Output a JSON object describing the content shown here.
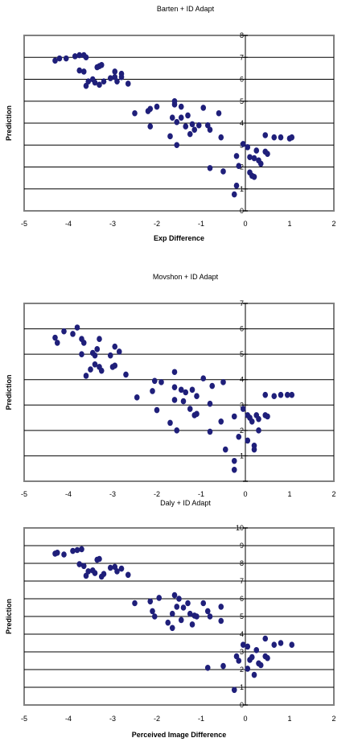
{
  "chart_data": [
    {
      "type": "scatter",
      "title": "Barten + ID Adapt",
      "xlabel": "Exp Difference",
      "ylabel": "Prediction",
      "xlim": [
        -5,
        2
      ],
      "ylim": [
        0,
        8
      ],
      "xticks": [
        -5,
        -4,
        -3,
        -2,
        -1,
        0,
        1,
        2
      ],
      "yticks": [
        0,
        1,
        2,
        3,
        4,
        5,
        6,
        7,
        8
      ],
      "marker_color": "#1f1f7a",
      "grid": "horizontal",
      "points": [
        [
          -4.3,
          6.85
        ],
        [
          -4.2,
          6.95
        ],
        [
          -4.05,
          6.95
        ],
        [
          -3.85,
          7.05
        ],
        [
          -3.75,
          7.1
        ],
        [
          -3.65,
          7.1
        ],
        [
          -3.6,
          7.0
        ],
        [
          -3.75,
          6.4
        ],
        [
          -3.65,
          6.35
        ],
        [
          -3.6,
          5.7
        ],
        [
          -3.55,
          5.9
        ],
        [
          -3.45,
          6.0
        ],
        [
          -3.4,
          5.85
        ],
        [
          -3.35,
          6.55
        ],
        [
          -3.3,
          6.6
        ],
        [
          -3.25,
          6.65
        ],
        [
          -3.3,
          5.75
        ],
        [
          -3.2,
          5.9
        ],
        [
          -3.05,
          6.05
        ],
        [
          -2.95,
          6.35
        ],
        [
          -2.95,
          6.1
        ],
        [
          -2.9,
          5.9
        ],
        [
          -2.8,
          6.25
        ],
        [
          -2.8,
          6.1
        ],
        [
          -2.65,
          5.8
        ],
        [
          -2.5,
          4.45
        ],
        [
          -2.2,
          4.55
        ],
        [
          -2.15,
          4.65
        ],
        [
          -2.15,
          3.85
        ],
        [
          -2.0,
          4.75
        ],
        [
          -1.7,
          3.4
        ],
        [
          -1.65,
          4.25
        ],
        [
          -1.6,
          5.0
        ],
        [
          -1.6,
          4.85
        ],
        [
          -1.55,
          3.0
        ],
        [
          -1.55,
          4.05
        ],
        [
          -1.45,
          4.75
        ],
        [
          -1.45,
          4.25
        ],
        [
          -1.35,
          3.85
        ],
        [
          -1.3,
          4.35
        ],
        [
          -1.25,
          3.5
        ],
        [
          -1.2,
          3.95
        ],
        [
          -1.15,
          3.7
        ],
        [
          -1.05,
          3.9
        ],
        [
          -0.95,
          4.7
        ],
        [
          -0.85,
          3.9
        ],
        [
          -0.8,
          3.7
        ],
        [
          -0.8,
          1.95
        ],
        [
          -0.6,
          4.45
        ],
        [
          -0.55,
          3.35
        ],
        [
          -0.5,
          1.8
        ],
        [
          -0.25,
          0.75
        ],
        [
          -0.2,
          1.15
        ],
        [
          -0.2,
          2.5
        ],
        [
          -0.15,
          2.05
        ],
        [
          -0.05,
          3.05
        ],
        [
          0.05,
          2.9
        ],
        [
          0.1,
          2.45
        ],
        [
          0.1,
          1.75
        ],
        [
          0.15,
          1.6
        ],
        [
          0.2,
          1.55
        ],
        [
          0.2,
          2.4
        ],
        [
          0.25,
          2.75
        ],
        [
          0.3,
          2.3
        ],
        [
          0.35,
          2.15
        ],
        [
          0.45,
          3.45
        ],
        [
          0.45,
          2.7
        ],
        [
          0.5,
          2.6
        ],
        [
          0.65,
          3.35
        ],
        [
          0.8,
          3.35
        ],
        [
          1.0,
          3.3
        ],
        [
          1.05,
          3.35
        ]
      ]
    },
    {
      "type": "scatter",
      "title": "Movshon + ID Adapt",
      "xlabel": "",
      "ylabel": "Prediction",
      "xlim": [
        -5,
        2
      ],
      "ylim": [
        0,
        7
      ],
      "xticks": [
        -5,
        -4,
        -3,
        -2,
        -1,
        0,
        1,
        2
      ],
      "yticks": [
        1,
        2,
        3,
        4,
        5,
        6,
        7
      ],
      "marker_color": "#1f1f7a",
      "grid": "horizontal",
      "points": [
        [
          -4.3,
          5.65
        ],
        [
          -4.25,
          5.45
        ],
        [
          -4.1,
          5.9
        ],
        [
          -3.9,
          5.8
        ],
        [
          -3.8,
          6.05
        ],
        [
          -3.7,
          5.6
        ],
        [
          -3.7,
          5.0
        ],
        [
          -3.65,
          5.45
        ],
        [
          -3.6,
          4.15
        ],
        [
          -3.5,
          4.4
        ],
        [
          -3.45,
          5.05
        ],
        [
          -3.4,
          4.6
        ],
        [
          -3.4,
          4.95
        ],
        [
          -3.35,
          5.2
        ],
        [
          -3.3,
          4.5
        ],
        [
          -3.3,
          5.6
        ],
        [
          -3.25,
          4.35
        ],
        [
          -3.05,
          4.95
        ],
        [
          -3.0,
          4.5
        ],
        [
          -2.95,
          5.3
        ],
        [
          -2.95,
          4.55
        ],
        [
          -2.85,
          5.1
        ],
        [
          -2.7,
          4.2
        ],
        [
          -2.45,
          3.3
        ],
        [
          -2.1,
          3.55
        ],
        [
          -2.05,
          3.95
        ],
        [
          -2.0,
          2.8
        ],
        [
          -1.9,
          3.9
        ],
        [
          -1.7,
          2.3
        ],
        [
          -1.6,
          4.3
        ],
        [
          -1.6,
          3.7
        ],
        [
          -1.6,
          3.2
        ],
        [
          -1.55,
          2.0
        ],
        [
          -1.45,
          3.6
        ],
        [
          -1.4,
          3.15
        ],
        [
          -1.35,
          3.5
        ],
        [
          -1.25,
          2.85
        ],
        [
          -1.2,
          3.6
        ],
        [
          -1.15,
          2.6
        ],
        [
          -1.1,
          3.35
        ],
        [
          -1.1,
          2.65
        ],
        [
          -0.95,
          4.05
        ],
        [
          -0.8,
          3.05
        ],
        [
          -0.8,
          1.95
        ],
        [
          -0.75,
          3.75
        ],
        [
          -0.55,
          2.35
        ],
        [
          -0.5,
          3.9
        ],
        [
          -0.45,
          1.25
        ],
        [
          -0.25,
          0.45
        ],
        [
          -0.25,
          0.8
        ],
        [
          -0.25,
          2.55
        ],
        [
          -0.15,
          1.75
        ],
        [
          -0.05,
          2.85
        ],
        [
          0.05,
          1.6
        ],
        [
          0.05,
          2.6
        ],
        [
          0.1,
          2.5
        ],
        [
          0.15,
          2.35
        ],
        [
          0.2,
          1.4
        ],
        [
          0.2,
          1.25
        ],
        [
          0.25,
          2.6
        ],
        [
          0.3,
          2.45
        ],
        [
          0.3,
          2.0
        ],
        [
          0.45,
          3.4
        ],
        [
          0.45,
          2.6
        ],
        [
          0.5,
          2.55
        ],
        [
          0.65,
          3.35
        ],
        [
          0.8,
          3.4
        ],
        [
          0.95,
          3.4
        ],
        [
          1.05,
          3.4
        ]
      ]
    },
    {
      "type": "scatter",
      "title": "Daly + ID Adapt",
      "xlabel": "Perceived Image Difference",
      "ylabel": "Prediction",
      "xlim": [
        -5,
        2
      ],
      "ylim": [
        0,
        10
      ],
      "xticks": [
        -5,
        -4,
        -3,
        -2,
        -1,
        0,
        1,
        2
      ],
      "yticks": [
        0,
        1,
        2,
        3,
        4,
        5,
        6,
        7,
        8,
        9,
        10
      ],
      "marker_color": "#1f1f7a",
      "grid": "horizontal",
      "points": [
        [
          -4.3,
          8.55
        ],
        [
          -4.25,
          8.6
        ],
        [
          -4.1,
          8.5
        ],
        [
          -3.9,
          8.7
        ],
        [
          -3.8,
          8.75
        ],
        [
          -3.7,
          8.8
        ],
        [
          -3.75,
          7.95
        ],
        [
          -3.65,
          7.85
        ],
        [
          -3.6,
          7.3
        ],
        [
          -3.55,
          7.55
        ],
        [
          -3.45,
          7.6
        ],
        [
          -3.4,
          7.45
        ],
        [
          -3.35,
          8.2
        ],
        [
          -3.3,
          8.25
        ],
        [
          -3.25,
          7.25
        ],
        [
          -3.2,
          7.4
        ],
        [
          -3.05,
          7.75
        ],
        [
          -2.95,
          7.8
        ],
        [
          -2.9,
          7.55
        ],
        [
          -2.8,
          7.7
        ],
        [
          -2.65,
          7.35
        ],
        [
          -2.5,
          5.75
        ],
        [
          -2.15,
          5.85
        ],
        [
          -2.1,
          5.3
        ],
        [
          -2.05,
          5.0
        ],
        [
          -1.95,
          6.05
        ],
        [
          -1.75,
          4.65
        ],
        [
          -1.65,
          4.35
        ],
        [
          -1.65,
          5.15
        ],
        [
          -1.6,
          6.2
        ],
        [
          -1.55,
          5.55
        ],
        [
          -1.5,
          6.0
        ],
        [
          -1.45,
          4.8
        ],
        [
          -1.4,
          5.5
        ],
        [
          -1.3,
          5.75
        ],
        [
          -1.25,
          5.15
        ],
        [
          -1.2,
          4.55
        ],
        [
          -1.15,
          5.05
        ],
        [
          -1.1,
          5.0
        ],
        [
          -0.95,
          5.75
        ],
        [
          -0.85,
          5.3
        ],
        [
          -0.85,
          2.1
        ],
        [
          -0.8,
          5.0
        ],
        [
          -0.55,
          5.55
        ],
        [
          -0.55,
          4.75
        ],
        [
          -0.5,
          2.2
        ],
        [
          -0.25,
          0.85
        ],
        [
          -0.2,
          2.75
        ],
        [
          -0.15,
          2.5
        ],
        [
          -0.05,
          3.4
        ],
        [
          0.05,
          2.05
        ],
        [
          0.05,
          3.3
        ],
        [
          0.1,
          2.55
        ],
        [
          0.15,
          2.7
        ],
        [
          0.2,
          1.7
        ],
        [
          0.25,
          3.1
        ],
        [
          0.3,
          2.35
        ],
        [
          0.35,
          2.25
        ],
        [
          0.45,
          3.75
        ],
        [
          0.45,
          2.75
        ],
        [
          0.5,
          2.65
        ],
        [
          0.65,
          3.4
        ],
        [
          0.8,
          3.5
        ],
        [
          1.05,
          3.4
        ]
      ]
    }
  ]
}
